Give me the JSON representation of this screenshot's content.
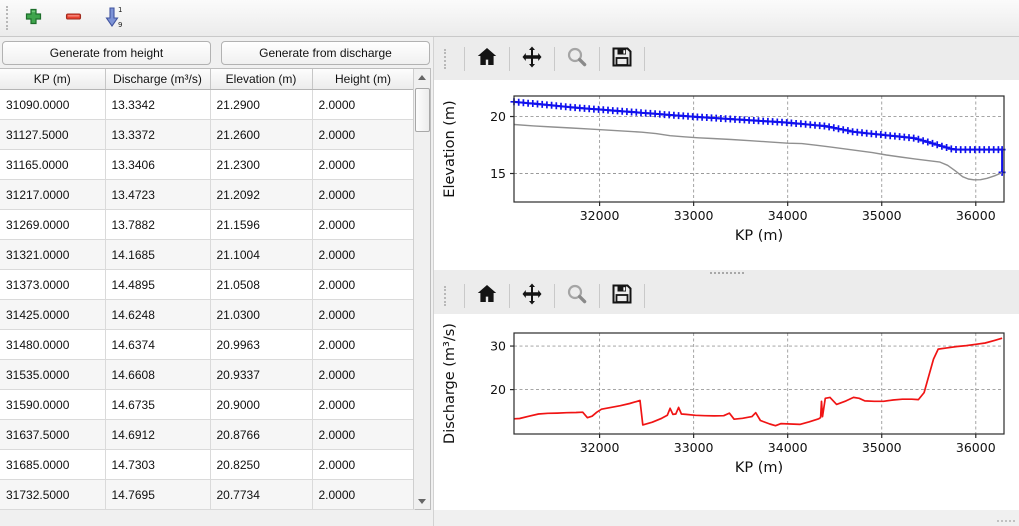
{
  "main_toolbar": {
    "icons": [
      "add",
      "remove",
      "sort-1-9"
    ]
  },
  "buttons": {
    "generate_height": "Generate from height",
    "generate_discharge": "Generate from discharge"
  },
  "table": {
    "columns": [
      "KP (m)",
      "Discharge (m³/s)",
      "Elevation (m)",
      "Height (m)"
    ],
    "rows": [
      [
        "31090.0000",
        "13.3342",
        "21.2900",
        "2.0000"
      ],
      [
        "31127.5000",
        "13.3372",
        "21.2600",
        "2.0000"
      ],
      [
        "31165.0000",
        "13.3406",
        "21.2300",
        "2.0000"
      ],
      [
        "31217.0000",
        "13.4723",
        "21.2092",
        "2.0000"
      ],
      [
        "31269.0000",
        "13.7882",
        "21.1596",
        "2.0000"
      ],
      [
        "31321.0000",
        "14.1685",
        "21.1004",
        "2.0000"
      ],
      [
        "31373.0000",
        "14.4895",
        "21.0508",
        "2.0000"
      ],
      [
        "31425.0000",
        "14.6248",
        "21.0300",
        "2.0000"
      ],
      [
        "31480.0000",
        "14.6374",
        "20.9963",
        "2.0000"
      ],
      [
        "31535.0000",
        "14.6608",
        "20.9337",
        "2.0000"
      ],
      [
        "31590.0000",
        "14.6735",
        "20.9000",
        "2.0000"
      ],
      [
        "31637.5000",
        "14.6912",
        "20.8766",
        "2.0000"
      ],
      [
        "31685.0000",
        "14.7303",
        "20.8250",
        "2.0000"
      ],
      [
        "31732.5000",
        "14.7695",
        "20.7734",
        "2.0000"
      ]
    ]
  },
  "mpl_toolbar": {
    "icons": [
      "home",
      "pan",
      "zoom",
      "save"
    ]
  },
  "colors": {
    "elevation_line": "#1010ee",
    "bed_line": "#909090",
    "discharge_line": "#f01414",
    "grid": "#9a9a9a",
    "spine": "#2b2b2b"
  },
  "chart_data": [
    {
      "type": "line",
      "title": "",
      "xlabel": "KP (m)",
      "ylabel": "Elevation (m)",
      "xlim": [
        31090,
        36300
      ],
      "ylim": [
        12.5,
        21.8
      ],
      "xticks": [
        32000,
        33000,
        34000,
        35000,
        36000
      ],
      "yticks": [
        15,
        20
      ],
      "grid": true,
      "legend": false,
      "series": [
        {
          "name": "water-elevation",
          "color": "#1010ee",
          "marker": "+",
          "line_width": 2,
          "points": [
            [
              31090,
              21.29
            ],
            [
              31140,
              21.25
            ],
            [
              31190,
              21.21
            ],
            [
              31240,
              21.17
            ],
            [
              31290,
              21.14
            ],
            [
              31340,
              21.1
            ],
            [
              31390,
              21.06
            ],
            [
              31440,
              21.02
            ],
            [
              31490,
              20.98
            ],
            [
              31540,
              20.94
            ],
            [
              31590,
              20.9
            ],
            [
              31640,
              20.86
            ],
            [
              31690,
              20.82
            ],
            [
              31740,
              20.78
            ],
            [
              31790,
              20.75
            ],
            [
              31840,
              20.71
            ],
            [
              31890,
              20.68
            ],
            [
              31940,
              20.65
            ],
            [
              31990,
              20.62
            ],
            [
              32040,
              20.59
            ],
            [
              32090,
              20.56
            ],
            [
              32140,
              20.52
            ],
            [
              32190,
              20.49
            ],
            [
              32240,
              20.46
            ],
            [
              32290,
              20.43
            ],
            [
              32340,
              20.4
            ],
            [
              32390,
              20.37
            ],
            [
              32440,
              20.33
            ],
            [
              32490,
              20.3
            ],
            [
              32540,
              20.27
            ],
            [
              32590,
              20.24
            ],
            [
              32640,
              20.21
            ],
            [
              32690,
              20.17
            ],
            [
              32740,
              20.14
            ],
            [
              32790,
              20.11
            ],
            [
              32840,
              20.08
            ],
            [
              32890,
              20.05
            ],
            [
              32940,
              20.02
            ],
            [
              32990,
              19.99
            ],
            [
              33040,
              19.96
            ],
            [
              33090,
              19.93
            ],
            [
              33140,
              19.91
            ],
            [
              33190,
              19.88
            ],
            [
              33240,
              19.86
            ],
            [
              33290,
              19.83
            ],
            [
              33340,
              19.8
            ],
            [
              33390,
              19.78
            ],
            [
              33440,
              19.75
            ],
            [
              33490,
              19.73
            ],
            [
              33540,
              19.7
            ],
            [
              33590,
              19.68
            ],
            [
              33640,
              19.65
            ],
            [
              33690,
              19.62
            ],
            [
              33740,
              19.6
            ],
            [
              33790,
              19.57
            ],
            [
              33840,
              19.55
            ],
            [
              33890,
              19.52
            ],
            [
              33940,
              19.5
            ],
            [
              33990,
              19.47
            ],
            [
              34040,
              19.43
            ],
            [
              34090,
              19.39
            ],
            [
              34140,
              19.36
            ],
            [
              34190,
              19.32
            ],
            [
              34240,
              19.28
            ],
            [
              34290,
              19.24
            ],
            [
              34340,
              19.2
            ],
            [
              34390,
              19.17
            ],
            [
              34440,
              19.09
            ],
            [
              34490,
              19.01
            ],
            [
              34540,
              18.92
            ],
            [
              34590,
              18.84
            ],
            [
              34640,
              18.76
            ],
            [
              34690,
              18.67
            ],
            [
              34740,
              18.62
            ],
            [
              34790,
              18.58
            ],
            [
              34840,
              18.53
            ],
            [
              34890,
              18.49
            ],
            [
              34940,
              18.45
            ],
            [
              34990,
              18.41
            ],
            [
              35040,
              18.36
            ],
            [
              35090,
              18.32
            ],
            [
              35140,
              18.28
            ],
            [
              35190,
              18.24
            ],
            [
              35240,
              18.19
            ],
            [
              35290,
              18.15
            ],
            [
              35340,
              18.11
            ],
            [
              35390,
              18.0
            ],
            [
              35440,
              17.88
            ],
            [
              35490,
              17.76
            ],
            [
              35540,
              17.64
            ],
            [
              35590,
              17.52
            ],
            [
              35640,
              17.4
            ],
            [
              35690,
              17.28
            ],
            [
              35740,
              17.16
            ],
            [
              35790,
              17.11
            ],
            [
              35840,
              17.1
            ],
            [
              35890,
              17.1
            ],
            [
              35940,
              17.1
            ],
            [
              35990,
              17.1
            ],
            [
              36040,
              17.1
            ],
            [
              36090,
              17.1
            ],
            [
              36140,
              17.1
            ],
            [
              36190,
              17.1
            ],
            [
              36240,
              17.1
            ],
            [
              36280,
              17.1
            ],
            [
              36280,
              15.1
            ]
          ]
        },
        {
          "name": "bed-profile",
          "color": "#909090",
          "marker": "",
          "line_width": 1.4,
          "points": [
            [
              31090,
              19.3
            ],
            [
              31300,
              19.18
            ],
            [
              31500,
              19.08
            ],
            [
              31700,
              18.99
            ],
            [
              31900,
              18.9
            ],
            [
              32100,
              18.8
            ],
            [
              32300,
              18.7
            ],
            [
              32450,
              18.62
            ],
            [
              32600,
              18.5
            ],
            [
              32750,
              18.32
            ],
            [
              32900,
              18.22
            ],
            [
              33050,
              18.13
            ],
            [
              33200,
              18.07
            ],
            [
              33400,
              17.98
            ],
            [
              33600,
              17.88
            ],
            [
              33800,
              17.77
            ],
            [
              34000,
              17.66
            ],
            [
              34150,
              17.62
            ],
            [
              34300,
              17.48
            ],
            [
              34450,
              17.33
            ],
            [
              34600,
              17.17
            ],
            [
              34750,
              17.0
            ],
            [
              34900,
              16.83
            ],
            [
              35050,
              16.62
            ],
            [
              35200,
              16.45
            ],
            [
              35350,
              16.28
            ],
            [
              35500,
              16.12
            ],
            [
              35620,
              16.0
            ],
            [
              35700,
              15.72
            ],
            [
              35780,
              15.25
            ],
            [
              35860,
              14.72
            ],
            [
              35920,
              14.52
            ],
            [
              35980,
              14.45
            ],
            [
              36050,
              14.46
            ],
            [
              36120,
              14.58
            ],
            [
              36200,
              14.8
            ],
            [
              36280,
              15.08
            ]
          ]
        }
      ]
    },
    {
      "type": "line",
      "title": "",
      "xlabel": "KP (m)",
      "ylabel": "Discharge (m³/s)",
      "xlim": [
        31090,
        36300
      ],
      "ylim": [
        9.8,
        33
      ],
      "xticks": [
        32000,
        33000,
        34000,
        35000,
        36000
      ],
      "yticks": [
        20,
        30
      ],
      "grid": true,
      "legend": false,
      "series": [
        {
          "name": "discharge",
          "color": "#f01414",
          "marker": "",
          "line_width": 1.7,
          "points": [
            [
              31090,
              13.3
            ],
            [
              31150,
              13.35
            ],
            [
              31250,
              13.9
            ],
            [
              31350,
              14.4
            ],
            [
              31450,
              14.55
            ],
            [
              31550,
              14.6
            ],
            [
              31650,
              14.7
            ],
            [
              31750,
              14.75
            ],
            [
              31820,
              14.8
            ],
            [
              31870,
              13.55
            ],
            [
              31920,
              13.9
            ],
            [
              31970,
              14.8
            ],
            [
              32020,
              15.5
            ],
            [
              32120,
              15.9
            ],
            [
              32220,
              16.3
            ],
            [
              32320,
              16.8
            ],
            [
              32430,
              17.5
            ],
            [
              32460,
              11.9
            ],
            [
              32560,
              12.5
            ],
            [
              32660,
              13.4
            ],
            [
              32720,
              14.1
            ],
            [
              32750,
              15.7
            ],
            [
              32780,
              14.3
            ],
            [
              32810,
              14.4
            ],
            [
              32840,
              15.9
            ],
            [
              32870,
              14.4
            ],
            [
              32920,
              14.3
            ],
            [
              33020,
              14.1
            ],
            [
              33120,
              14.0
            ],
            [
              33220,
              13.95
            ],
            [
              33320,
              14.0
            ],
            [
              33380,
              14.6
            ],
            [
              33430,
              13.2
            ],
            [
              33520,
              13.4
            ],
            [
              33620,
              13.8
            ],
            [
              33660,
              14.7
            ],
            [
              33710,
              12.9
            ],
            [
              33810,
              12.1
            ],
            [
              33870,
              11.7
            ],
            [
              33930,
              12.2
            ],
            [
              34030,
              12.1
            ],
            [
              34130,
              12.0
            ],
            [
              34230,
              12.6
            ],
            [
              34330,
              13.3
            ],
            [
              34350,
              13.6
            ],
            [
              34360,
              17.3
            ],
            [
              34370,
              13.8
            ],
            [
              34400,
              18.0
            ],
            [
              34450,
              18.2
            ],
            [
              34520,
              16.6
            ],
            [
              34620,
              17.4
            ],
            [
              34700,
              18.2
            ],
            [
              34760,
              18.0
            ],
            [
              34820,
              17.4
            ],
            [
              34920,
              17.3
            ],
            [
              35020,
              17.3
            ],
            [
              35120,
              17.6
            ],
            [
              35220,
              17.8
            ],
            [
              35320,
              17.8
            ],
            [
              35390,
              17.7
            ],
            [
              35450,
              19.3
            ],
            [
              35550,
              27.0
            ],
            [
              35600,
              29.3
            ],
            [
              35700,
              29.6
            ],
            [
              35800,
              29.9
            ],
            [
              35900,
              30.1
            ],
            [
              36000,
              30.4
            ],
            [
              36100,
              30.7
            ],
            [
              36200,
              31.3
            ],
            [
              36280,
              31.8
            ]
          ]
        }
      ]
    }
  ]
}
